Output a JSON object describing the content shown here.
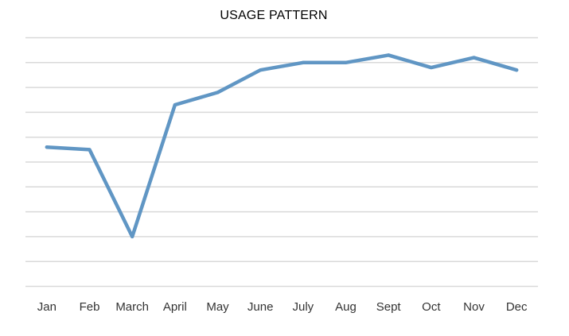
{
  "chart_data": {
    "type": "line",
    "title": "USAGE PATTERN",
    "xlabel": "",
    "ylabel": "",
    "categories": [
      "Jan",
      "Feb",
      "March",
      "April",
      "May",
      "June",
      "July",
      "Aug",
      "Sept",
      "Oct",
      "Nov",
      "Dec"
    ],
    "series": [
      {
        "values": [
          5.6,
          5.5,
          2.0,
          7.3,
          7.8,
          8.7,
          9.0,
          9.0,
          9.3,
          8.8,
          9.2,
          8.7
        ],
        "color": "#6096c4"
      }
    ],
    "ylim": [
      0,
      10
    ],
    "grid": true,
    "legend": "none"
  }
}
